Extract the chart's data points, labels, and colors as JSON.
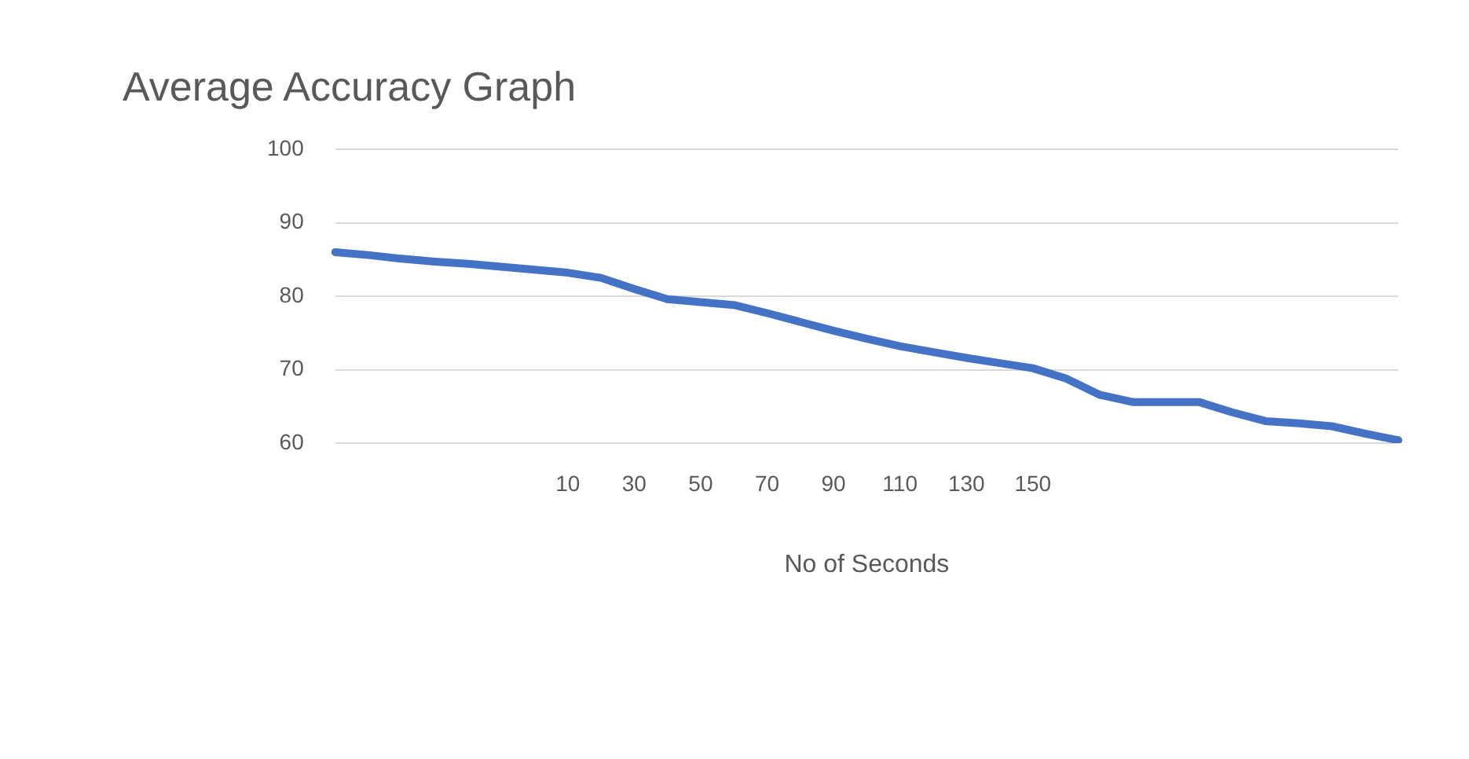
{
  "chart_data": {
    "type": "line",
    "title": "Average Accuracy Graph",
    "xlabel": "No of Seconds",
    "categories": [
      null,
      null,
      null,
      null,
      null,
      null,
      null,
      "10",
      null,
      "30",
      null,
      "50",
      null,
      "70",
      null,
      "90",
      null,
      "110",
      null,
      "130",
      null,
      "150",
      null,
      null,
      null,
      null,
      null,
      null,
      null,
      null,
      null,
      null,
      null
    ],
    "series": [
      {
        "color": "#4472c4",
        "values": [
          86,
          85.6,
          85.1,
          84.7,
          84.4,
          84.0,
          83.6,
          83.2,
          82.5,
          81.0,
          79.6,
          79.2,
          78.8,
          77.7,
          76.5,
          75.3,
          74.2,
          73.2,
          72.4,
          71.6,
          70.9,
          70.2,
          68.8,
          66.6,
          65.6,
          65.6,
          65.6,
          64.2,
          63.0,
          62.7,
          62.3,
          61.3,
          60.4
        ]
      }
    ],
    "ylim": [
      60,
      100
    ],
    "yticks": [
      60,
      70,
      80,
      90,
      100
    ],
    "grid": "y",
    "legend": false,
    "marker": "none",
    "line_style": "solid"
  }
}
